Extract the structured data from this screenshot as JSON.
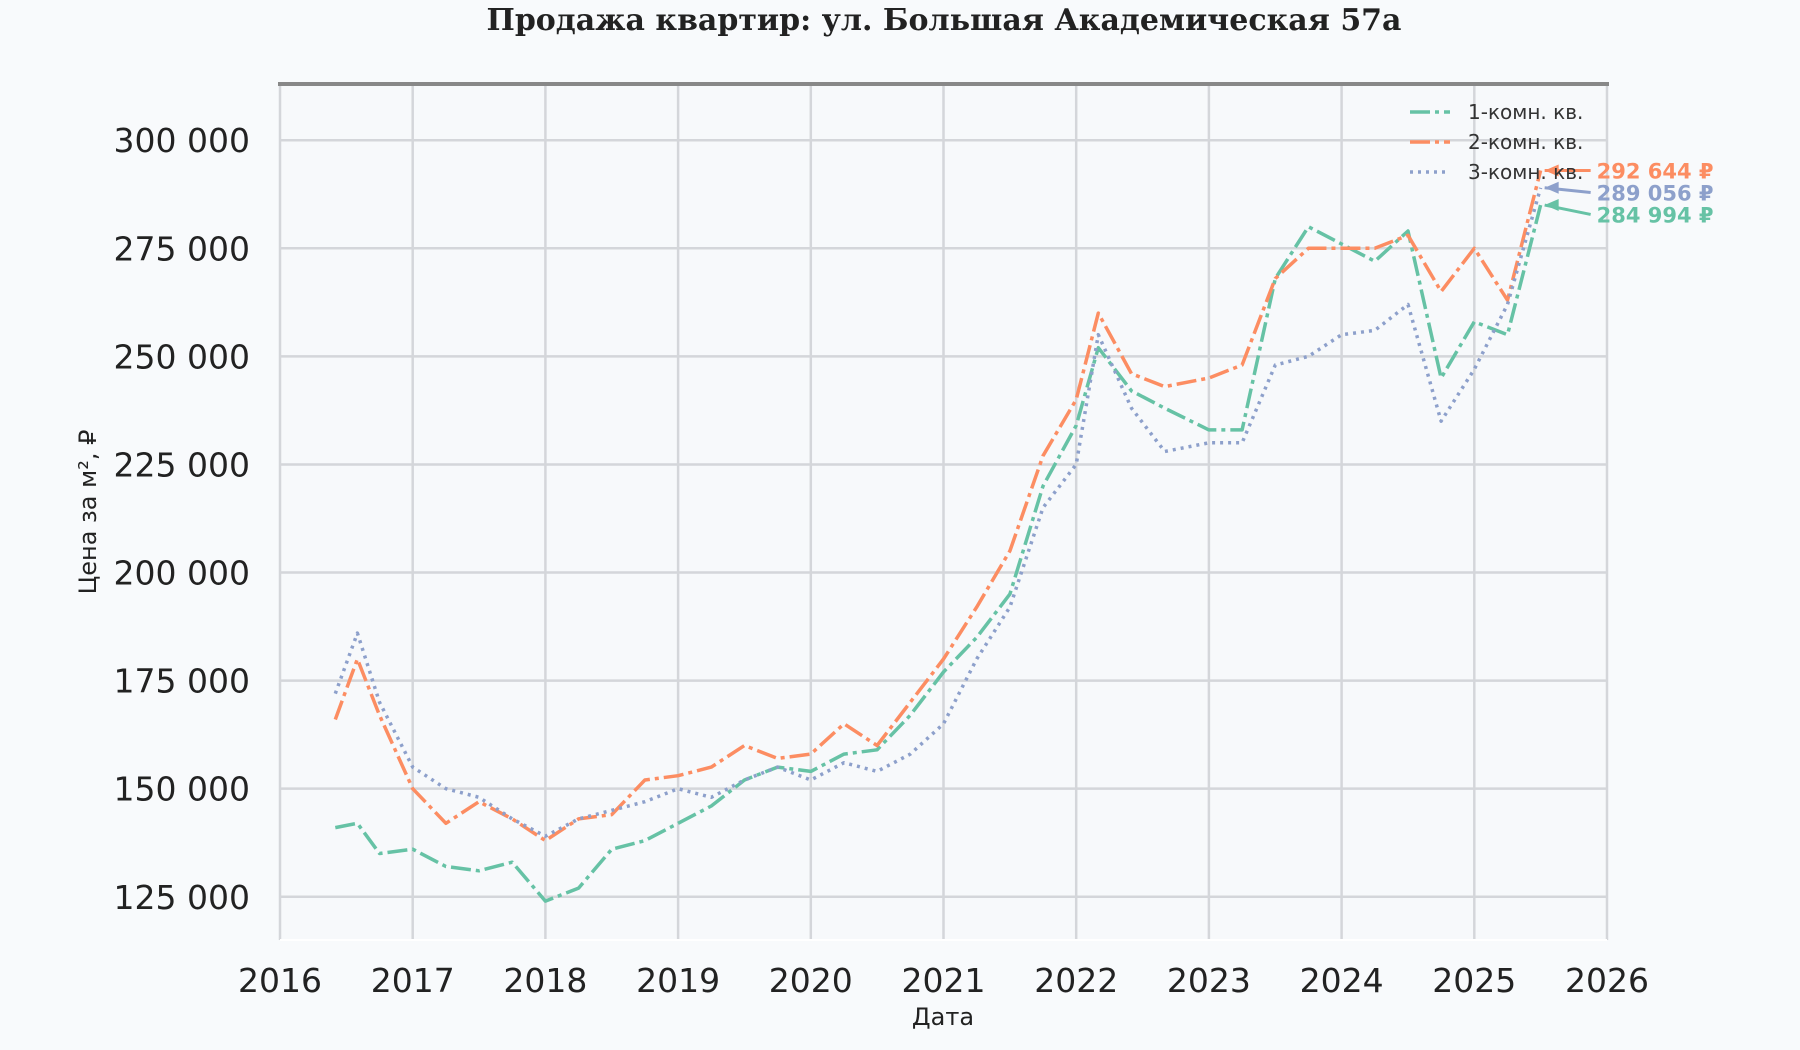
{
  "chart_data": {
    "type": "line",
    "title": "Продажа квартир: ул. Большая Академическая 57а",
    "xlabel": "Дата",
    "ylabel": "Цена за м², ₽",
    "xlim": [
      2016,
      2026
    ],
    "ylim": [
      115000,
      313000
    ],
    "x_ticks": [
      "2016",
      "2017",
      "2018",
      "2019",
      "2020",
      "2021",
      "2022",
      "2023",
      "2024",
      "2025",
      "2026"
    ],
    "y_ticks": [
      "125 000",
      "150 000",
      "175 000",
      "200 000",
      "225 000",
      "250 000",
      "275 000",
      "300 000"
    ],
    "grid": true,
    "legend_position": "top-right",
    "x": [
      "2016-06",
      "2016-08",
      "2016-10",
      "2017-01",
      "2017-04",
      "2017-07",
      "2017-10",
      "2018-01",
      "2018-04",
      "2018-07",
      "2018-10",
      "2019-01",
      "2019-04",
      "2019-07",
      "2019-10",
      "2020-01",
      "2020-04",
      "2020-07",
      "2020-10",
      "2021-01",
      "2021-04",
      "2021-07",
      "2021-10",
      "2022-01",
      "2022-03",
      "2022-06",
      "2022-09",
      "2023-01",
      "2023-04",
      "2023-07",
      "2023-10",
      "2024-01",
      "2024-04",
      "2024-07",
      "2024-10",
      "2025-01",
      "2025-04",
      "2025-07"
    ],
    "series": [
      {
        "name": "1-комн. кв.",
        "color": "#66c2a5",
        "dash": "dashdot",
        "values": [
          141000,
          142000,
          135000,
          136000,
          132000,
          131000,
          133000,
          124000,
          127000,
          136000,
          138000,
          142000,
          146000,
          152000,
          155000,
          154000,
          158000,
          159000,
          167000,
          177000,
          185000,
          195000,
          220000,
          234000,
          252000,
          242000,
          238000,
          233000,
          233000,
          268000,
          280000,
          276000,
          272000,
          279000,
          245000,
          258000,
          255000,
          285000
        ],
        "end_label": "284 994 ₽"
      },
      {
        "name": "2-комн. кв.",
        "color": "#fc8d62",
        "dash": "dashdot",
        "values": [
          166000,
          180000,
          167000,
          150000,
          142000,
          147000,
          143000,
          138000,
          143000,
          144000,
          152000,
          153000,
          155000,
          160000,
          157000,
          158000,
          165000,
          160000,
          170000,
          180000,
          192000,
          205000,
          227000,
          240000,
          260000,
          246000,
          243000,
          245000,
          248000,
          268000,
          275000,
          275000,
          275000,
          278000,
          265000,
          275000,
          263000,
          293000
        ],
        "end_label": "292 644 ₽"
      },
      {
        "name": "3-комн. кв.",
        "color": "#8da0cb",
        "dash": "dotted",
        "values": [
          172000,
          186000,
          170000,
          155000,
          150000,
          148000,
          143000,
          139000,
          143000,
          145000,
          147000,
          150000,
          148000,
          152000,
          155000,
          152000,
          156000,
          154000,
          158000,
          165000,
          180000,
          192000,
          215000,
          225000,
          255000,
          238000,
          228000,
          230000,
          230000,
          248000,
          250000,
          255000,
          256000,
          262000,
          235000,
          247000,
          262000,
          289000
        ],
        "end_label": "289 056 ₽"
      }
    ]
  }
}
